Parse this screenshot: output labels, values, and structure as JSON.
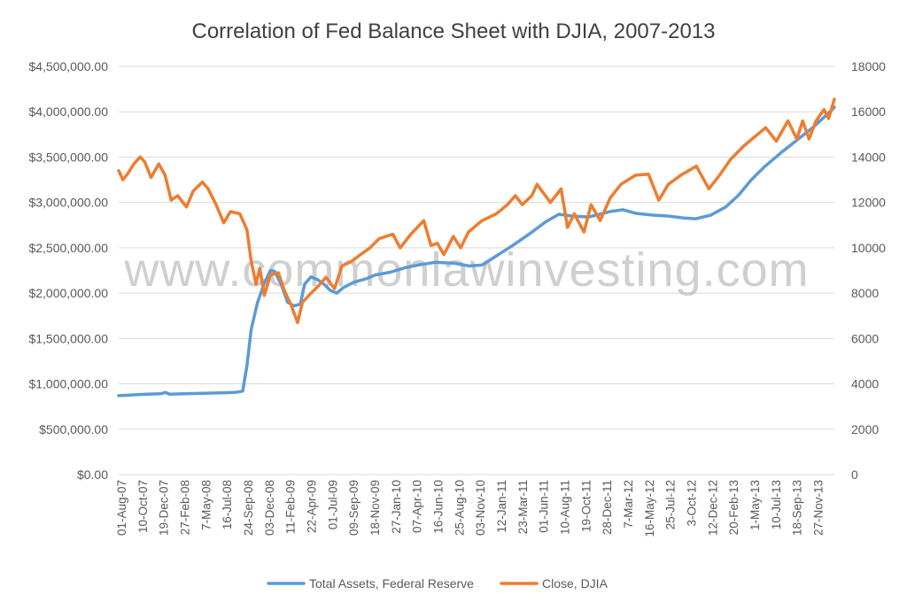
{
  "chart_data": {
    "type": "line",
    "title": "Correlation of Fed Balance Sheet with DJIA, 2007-2013",
    "watermark": "www.commonlawinvesting.com",
    "y_left": {
      "ticks": [
        "$0.00",
        "$500,000.00",
        "$1,000,000.00",
        "$1,500,000.00",
        "$2,000,000.00",
        "$2,500,000.00",
        "$3,000,000.00",
        "$3,500,000.00",
        "$4,000,000.00",
        "$4,500,000.00"
      ],
      "range": [
        0,
        4500000
      ]
    },
    "y_right": {
      "ticks": [
        "0",
        "2000",
        "4000",
        "6000",
        "8000",
        "10000",
        "12000",
        "14000",
        "16000",
        "18000"
      ],
      "range": [
        0,
        18000
      ]
    },
    "x_ticks": [
      "01-Aug-07",
      "10-Oct-07",
      "19-Dec-07",
      "27-Feb-08",
      "7-May-08",
      "16-Jul-08",
      "24-Sep-08",
      "03-Dec-08",
      "11-Feb-09",
      "22-Apr-09",
      "01-Jul-09",
      "09-Sep-09",
      "18-Nov-09",
      "27-Jan-10",
      "07-Apr-10",
      "16-Jun-10",
      "25-Aug-10",
      "03-Nov-10",
      "12-Jan-11",
      "23-Mar-11",
      "01-Jun-11",
      "10-Aug-11",
      "19-Oct-11",
      "28-Dec-11",
      "7-Mar-12",
      "16-May-12",
      "25-Jul-12",
      "3-Oct-12",
      "12-Dec-12",
      "20-Feb-13",
      "1-May-13",
      "10-Jul-13",
      "18-Sep-13",
      "27-Nov-13"
    ],
    "x_range": [
      "2007-08-01",
      "2013-12-31"
    ],
    "grid": true,
    "legend_position": "bottom",
    "series": [
      {
        "name": "Total Assets, Federal Reserve",
        "axis": "left",
        "color": "#5b9bd5",
        "points": [
          [
            "2007-08-01",
            870000
          ],
          [
            "2007-09-01",
            875000
          ],
          [
            "2007-10-01",
            880000
          ],
          [
            "2007-11-01",
            885000
          ],
          [
            "2007-12-15",
            890000
          ],
          [
            "2008-01-01",
            905000
          ],
          [
            "2008-01-15",
            885000
          ],
          [
            "2008-03-01",
            890000
          ],
          [
            "2008-05-01",
            895000
          ],
          [
            "2008-07-01",
            900000
          ],
          [
            "2008-08-15",
            905000
          ],
          [
            "2008-09-10",
            920000
          ],
          [
            "2008-09-24",
            1200000
          ],
          [
            "2008-10-08",
            1600000
          ],
          [
            "2008-10-29",
            1900000
          ],
          [
            "2008-11-19",
            2100000
          ],
          [
            "2008-12-10",
            2250000
          ],
          [
            "2008-12-24",
            2240000
          ],
          [
            "2009-01-14",
            2100000
          ],
          [
            "2009-02-04",
            1900000
          ],
          [
            "2009-02-25",
            1860000
          ],
          [
            "2009-03-18",
            1880000
          ],
          [
            "2009-04-01",
            2100000
          ],
          [
            "2009-04-22",
            2180000
          ],
          [
            "2009-05-13",
            2150000
          ],
          [
            "2009-06-03",
            2100000
          ],
          [
            "2009-06-24",
            2030000
          ],
          [
            "2009-07-15",
            2000000
          ],
          [
            "2009-08-05",
            2060000
          ],
          [
            "2009-09-09",
            2120000
          ],
          [
            "2009-10-21",
            2160000
          ],
          [
            "2009-11-18",
            2200000
          ],
          [
            "2010-01-06",
            2230000
          ],
          [
            "2010-02-24",
            2280000
          ],
          [
            "2010-04-07",
            2310000
          ],
          [
            "2010-06-02",
            2340000
          ],
          [
            "2010-08-04",
            2330000
          ],
          [
            "2010-09-22",
            2300000
          ],
          [
            "2010-11-03",
            2310000
          ],
          [
            "2010-12-15",
            2400000
          ],
          [
            "2011-02-09",
            2520000
          ],
          [
            "2011-04-06",
            2650000
          ],
          [
            "2011-06-01",
            2790000
          ],
          [
            "2011-07-13",
            2870000
          ],
          [
            "2011-08-24",
            2850000
          ],
          [
            "2011-10-19",
            2840000
          ],
          [
            "2011-12-28",
            2900000
          ],
          [
            "2012-02-08",
            2920000
          ],
          [
            "2012-03-21",
            2880000
          ],
          [
            "2012-05-16",
            2860000
          ],
          [
            "2012-07-04",
            2850000
          ],
          [
            "2012-08-22",
            2830000
          ],
          [
            "2012-10-03",
            2820000
          ],
          [
            "2012-11-21",
            2860000
          ],
          [
            "2013-01-09",
            2950000
          ],
          [
            "2013-02-20",
            3080000
          ],
          [
            "2013-04-03",
            3250000
          ],
          [
            "2013-05-15",
            3390000
          ],
          [
            "2013-07-10",
            3550000
          ],
          [
            "2013-09-04",
            3700000
          ],
          [
            "2013-10-23",
            3830000
          ],
          [
            "2013-12-04",
            3960000
          ],
          [
            "2013-12-31",
            4050000
          ]
        ]
      },
      {
        "name": "Close, DJIA",
        "axis": "right",
        "color": "#ed7d31",
        "points": [
          [
            "2007-08-01",
            13400
          ],
          [
            "2007-08-15",
            13000
          ],
          [
            "2007-09-01",
            13300
          ],
          [
            "2007-09-20",
            13700
          ],
          [
            "2007-10-10",
            14000
          ],
          [
            "2007-10-25",
            13800
          ],
          [
            "2007-11-15",
            13100
          ],
          [
            "2007-12-10",
            13700
          ],
          [
            "2007-12-31",
            13200
          ],
          [
            "2008-01-20",
            12100
          ],
          [
            "2008-02-10",
            12300
          ],
          [
            "2008-03-10",
            11800
          ],
          [
            "2008-04-01",
            12500
          ],
          [
            "2008-05-01",
            12900
          ],
          [
            "2008-05-20",
            12600
          ],
          [
            "2008-06-15",
            11900
          ],
          [
            "2008-07-10",
            11100
          ],
          [
            "2008-08-01",
            11600
          ],
          [
            "2008-09-01",
            11500
          ],
          [
            "2008-09-24",
            10800
          ],
          [
            "2008-10-08",
            9400
          ],
          [
            "2008-10-24",
            8400
          ],
          [
            "2008-11-05",
            9100
          ],
          [
            "2008-11-20",
            7900
          ],
          [
            "2008-12-10",
            8800
          ],
          [
            "2009-01-05",
            8900
          ],
          [
            "2009-01-25",
            8100
          ],
          [
            "2009-02-15",
            7500
          ],
          [
            "2009-03-09",
            6700
          ],
          [
            "2009-03-25",
            7600
          ],
          [
            "2009-04-22",
            8000
          ],
          [
            "2009-05-15",
            8300
          ],
          [
            "2009-06-10",
            8700
          ],
          [
            "2009-07-08",
            8200
          ],
          [
            "2009-08-01",
            9200
          ],
          [
            "2009-09-01",
            9400
          ],
          [
            "2009-10-01",
            9700
          ],
          [
            "2009-11-01",
            10000
          ],
          [
            "2009-12-01",
            10400
          ],
          [
            "2010-01-15",
            10600
          ],
          [
            "2010-02-08",
            10000
          ],
          [
            "2010-03-15",
            10600
          ],
          [
            "2010-04-26",
            11200
          ],
          [
            "2010-05-20",
            10100
          ],
          [
            "2010-06-10",
            10200
          ],
          [
            "2010-07-01",
            9700
          ],
          [
            "2010-08-01",
            10500
          ],
          [
            "2010-08-25",
            10000
          ],
          [
            "2010-09-20",
            10700
          ],
          [
            "2010-11-03",
            11200
          ],
          [
            "2010-12-20",
            11500
          ],
          [
            "2011-01-25",
            11900
          ],
          [
            "2011-02-20",
            12300
          ],
          [
            "2011-03-15",
            11900
          ],
          [
            "2011-04-15",
            12300
          ],
          [
            "2011-05-02",
            12800
          ],
          [
            "2011-06-15",
            12000
          ],
          [
            "2011-07-20",
            12600
          ],
          [
            "2011-08-10",
            10900
          ],
          [
            "2011-09-01",
            11500
          ],
          [
            "2011-10-03",
            10700
          ],
          [
            "2011-10-26",
            11900
          ],
          [
            "2011-11-25",
            11200
          ],
          [
            "2011-12-28",
            12200
          ],
          [
            "2012-02-01",
            12800
          ],
          [
            "2012-03-20",
            13200
          ],
          [
            "2012-05-01",
            13250
          ],
          [
            "2012-06-04",
            12100
          ],
          [
            "2012-07-05",
            12800
          ],
          [
            "2012-08-15",
            13200
          ],
          [
            "2012-10-05",
            13600
          ],
          [
            "2012-11-15",
            12600
          ],
          [
            "2012-12-20",
            13200
          ],
          [
            "2013-01-25",
            13900
          ],
          [
            "2013-03-10",
            14500
          ],
          [
            "2013-05-20",
            15300
          ],
          [
            "2013-06-24",
            14700
          ],
          [
            "2013-08-01",
            15600
          ],
          [
            "2013-08-30",
            14800
          ],
          [
            "2013-09-18",
            15600
          ],
          [
            "2013-10-09",
            14800
          ],
          [
            "2013-11-01",
            15600
          ],
          [
            "2013-11-27",
            16100
          ],
          [
            "2013-12-12",
            15700
          ],
          [
            "2013-12-31",
            16550
          ]
        ]
      }
    ]
  }
}
